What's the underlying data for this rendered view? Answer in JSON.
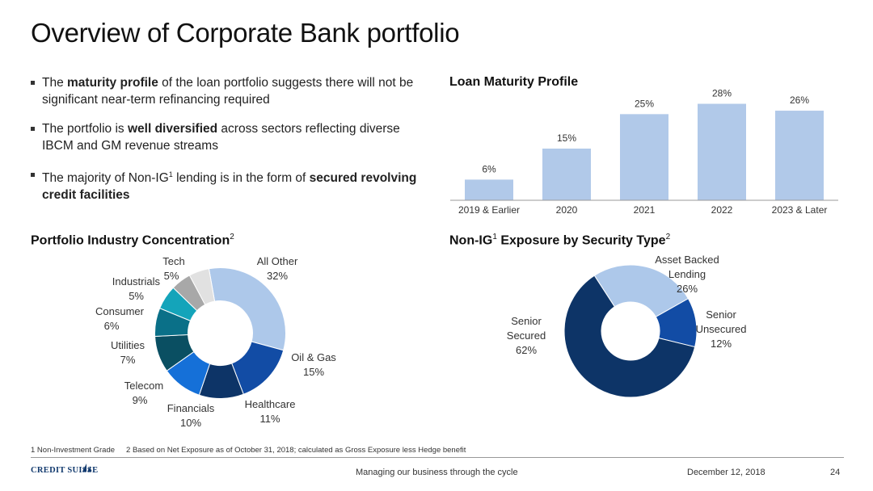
{
  "page": {
    "title": "Overview of Corporate Bank portfolio",
    "footnote_1": "1 Non-Investment Grade",
    "footnote_2": "2 Based on Net Exposure as of October 31, 2018; calculated as Gross Exposure less Hedge benefit",
    "footer_center": "Managing our business through the cycle",
    "footer_date": "December 12, 2018",
    "page_number": "24",
    "logo_text": "CREDIT SUISSE"
  },
  "bullets": [
    {
      "pre": "The ",
      "bold": "maturity profile",
      "post": " of the loan portfolio suggests there will not be significant near-term refinancing required"
    },
    {
      "pre": "The portfolio is ",
      "bold": "well diversified",
      "post": " across sectors reflecting diverse IBCM and GM revenue streams"
    },
    {
      "pre": "The majority of Non-IG",
      "sup": "1",
      "mid": " lending is in the form of ",
      "bold": "secured revolving credit facilities",
      "post": ""
    }
  ],
  "colors": {
    "bar": "#b1c9e9",
    "axis": "#999999",
    "light_blue": "#adc8ea",
    "dark_navy": "#0d3467",
    "mid_blue": "#124ca5",
    "bright_blue": "#1570d8",
    "teal_dark": "#0a4f62",
    "teal": "#0a7088",
    "teal_light": "#14a4ba",
    "gray": "#a8a8a8",
    "light_gray": "#e1e1e1"
  },
  "chart_data": [
    {
      "id": "maturity",
      "type": "bar",
      "title": "Loan Maturity Profile",
      "categories": [
        "2019 & Earlier",
        "2020",
        "2021",
        "2022",
        "2023 & Later"
      ],
      "values": [
        6,
        15,
        25,
        28,
        26
      ],
      "value_labels": [
        "6%",
        "15%",
        "25%",
        "28%",
        "26%"
      ],
      "unit": "%",
      "ylim": [
        0,
        30
      ],
      "grid": false
    },
    {
      "id": "industry",
      "type": "pie",
      "title": "Portfolio Industry Concentration",
      "title_sup": "2",
      "donut": true,
      "slices": [
        {
          "name": "All Other",
          "value": 32,
          "label": "32%",
          "color": "#adc8ea"
        },
        {
          "name": "Oil & Gas",
          "value": 15,
          "label": "15%",
          "color": "#124ca5"
        },
        {
          "name": "Healthcare",
          "value": 11,
          "label": "11%",
          "color": "#0d3467"
        },
        {
          "name": "Financials",
          "value": 10,
          "label": "10%",
          "color": "#1570d8"
        },
        {
          "name": "Telecom",
          "value": 9,
          "label": "9%",
          "color": "#0a4f62"
        },
        {
          "name": "Utilities",
          "value": 7,
          "label": "7%",
          "color": "#0a7088"
        },
        {
          "name": "Consumer",
          "value": 6,
          "label": "6%",
          "color": "#14a4ba"
        },
        {
          "name": "Industrials",
          "value": 5,
          "label": "5%",
          "color": "#a8a8a8"
        },
        {
          "name": "Tech",
          "value": 5,
          "label": "5%",
          "color": "#e1e1e1"
        }
      ]
    },
    {
      "id": "security",
      "type": "pie",
      "title_pre": "Non-IG",
      "title_sup": "1",
      "title_post": " Exposure by Security Type",
      "title_sup2": "2",
      "donut": true,
      "slices": [
        {
          "name": "Asset Backed Lending",
          "value": 26,
          "label": "26%",
          "color": "#adc8ea"
        },
        {
          "name": "Senior Unsecured",
          "value": 12,
          "label": "12%",
          "color": "#124ca5"
        },
        {
          "name": "Senior Secured",
          "value": 62,
          "label": "62%",
          "color": "#0d3467"
        }
      ]
    }
  ],
  "industry_labels": {
    "all_other": {
      "name": "All Other",
      "pct": "32%"
    },
    "oil_gas": {
      "name": "Oil & Gas",
      "pct": "15%"
    },
    "healthcare": {
      "name": "Healthcare",
      "pct": "11%"
    },
    "financials": {
      "name": "Financials",
      "pct": "10%"
    },
    "telecom": {
      "name": "Telecom",
      "pct": "9%"
    },
    "utilities": {
      "name": "Utilities",
      "pct": "7%"
    },
    "consumer": {
      "name": "Consumer",
      "pct": "6%"
    },
    "industrials": {
      "name": "Industrials",
      "pct": "5%"
    },
    "tech": {
      "name": "Tech",
      "pct": "5%"
    }
  },
  "security_labels": {
    "abl_line1": "Asset Backed",
    "abl_line2": "Lending",
    "abl_pct": "26%",
    "unsec_line1": "Senior",
    "unsec_line2": "Unsecured",
    "unsec_pct": "12%",
    "sec_line1": "Senior",
    "sec_line2": "Secured",
    "sec_pct": "62%"
  }
}
